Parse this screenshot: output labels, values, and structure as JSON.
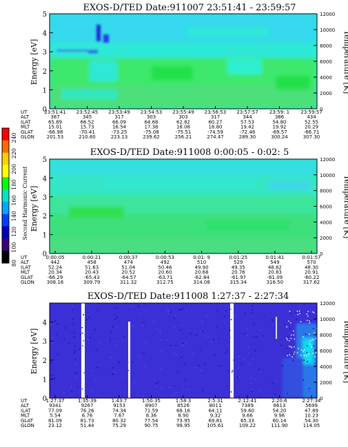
{
  "colors": {
    "background": "#ffffff",
    "cyan": "#2ff0d0",
    "aqua": "#33d6e8",
    "green": "#22e04a",
    "lightgreen": "#3ce86c",
    "blue_bg": "#3a2bd0",
    "deep_blue": "#1a18a8",
    "white_streak": "#ffffff"
  },
  "colorbar": {
    "label": "Second Harmonic Current",
    "ticks": [
      "240",
      "220",
      "200",
      "180",
      "160",
      "140",
      "120",
      "100",
      "80"
    ],
    "colors": [
      "#ff0000",
      "#ff6a00",
      "#ffd000",
      "#ffff00",
      "#00ff00",
      "#00e5c0",
      "#00a8ff",
      "#0040ff",
      "#0000c0",
      "#3b007a",
      "#000000"
    ]
  },
  "eph_labels": [
    "UT",
    "ALT",
    "ILAT",
    "MLT",
    "GLAT",
    "GLON"
  ],
  "chart_data": [
    {
      "type": "heatmap",
      "title": "EXOS-D/TED   Date:911007  23:51:41 - 23:59:57",
      "ylabel": "Energy [eV]",
      "ylabel_right": "Temperature [K]",
      "ylim": [
        0,
        5
      ],
      "ylim_right": [
        0,
        12000
      ],
      "yticks": [
        "0",
        "1",
        "2",
        "3",
        "4",
        "5"
      ],
      "yticks_right": [
        "0",
        "2000",
        "4000",
        "6000",
        "8000",
        "10000",
        "12000"
      ],
      "ephemeris": {
        "UT": [
          "23:51:41",
          "23:52:45",
          "23:53:49",
          "23:54:53",
          "23:55:49",
          "23:56:53",
          "23:57:57",
          "23:59: 1",
          "23:59:57"
        ],
        "ALT": [
          "387",
          "345",
          "317",
          "303",
          "303",
          "317",
          "344",
          "386",
          "434"
        ],
        "ILAT": [
          "65.89",
          "66.52",
          "66.09",
          "64.68",
          "62.82",
          "60.27",
          "57.53",
          "54.80",
          "52.55"
        ],
        "MLT": [
          "15.01",
          "15.73",
          "16.54",
          "17.38",
          "18.08",
          "18.80",
          "19.42",
          "19.92",
          "20.29"
        ],
        "GLAT": [
          "-66.98",
          "-70.41",
          "-73.25",
          "-75.08",
          "-75.51",
          "-74.59",
          "-72.46",
          "-69.57",
          "-66.71"
        ],
        "GLON": [
          "201.53",
          "210.60",
          "223.13",
          "239.62",
          "256.21",
          "274.47",
          "289.30",
          "300.24",
          "307.30"
        ]
      }
    },
    {
      "type": "heatmap",
      "title": "EXOS-D/TED   Date:911008  0:00:05 - 0:02: 5",
      "ylabel": "Energy [eV]",
      "ylabel_right": "Temperature [K]",
      "ylim": [
        0,
        5
      ],
      "ylim_right": [
        0,
        12000
      ],
      "yticks": [
        "0",
        "1",
        "2",
        "3",
        "4",
        "5"
      ],
      "yticks_right": [
        "0",
        "2000",
        "4000",
        "6000",
        "8000",
        "10000",
        "12000"
      ],
      "ephemeris": {
        "UT": [
          "0:00:05",
          "0:00:21",
          "0:00:37",
          "0:00:53",
          "0:01: 9",
          "0:01:25",
          "0:01:41",
          "0:01:57"
        ],
        "ALT": [
          "442",
          "458",
          "474",
          "492",
          "510",
          "529",
          "549",
          "570"
        ],
        "ILAT": [
          "52.24",
          "51.63",
          "51.04",
          "50.46",
          "49.90",
          "49.35",
          "48.82",
          "48.30"
        ],
        "MLT": [
          "20.34",
          "20.43",
          "20.52",
          "20.60",
          "20.68",
          "20.76",
          "20.83",
          "20.91"
        ],
        "GLAT": [
          "-66.29",
          "-65.43",
          "-64.57",
          "-63.71",
          "-62.84",
          "-61.97",
          "-61.09",
          "-60.22"
        ],
        "GLON": [
          "308.16",
          "309.79",
          "311.32",
          "312.75",
          "314.08",
          "315.34",
          "316.50",
          "317.62"
        ]
      }
    },
    {
      "type": "heatmap",
      "title": "EXOS-D/TED   Date:911008  1:27:37 - 2:27:34",
      "ylabel": "Energy [eV]",
      "ylabel_right": "Temperature [K]",
      "ylim": [
        0,
        5
      ],
      "ylim_right": [
        0,
        12000
      ],
      "yticks": [
        "0",
        "1",
        "2",
        "3",
        "4"
      ],
      "yticks_right": [
        "0",
        "2000",
        "4000",
        "6000",
        "8000",
        "10000",
        "12000"
      ],
      "ephemeris": {
        "UT": [
          "1:27:37",
          "1:35:39",
          "1:43:7",
          "1:50:35",
          "1:58:3",
          "2:5:31",
          "2:12:41",
          "2:20:6",
          "2:27:34"
        ],
        "ALT": [
          "9341",
          "9267",
          "9153",
          "8907",
          "8526",
          "8011",
          "7389",
          "6613",
          "5699"
        ],
        "ILAT": [
          "77.09",
          "76.26",
          "74.34",
          "71.59",
          "68.16",
          "64.11",
          "59.60",
          "54.20",
          "47.89"
        ],
        "MLT": [
          "5.54",
          "6.76",
          "7.67",
          "8.36",
          "8.90",
          "9.32",
          "9.66",
          "9.96",
          "10.23"
        ],
        "GLAT": [
          "81.09",
          "81.73",
          "80.32",
          "77.54",
          "73.95",
          "69.81",
          "65.33",
          "60.14",
          "54.30"
        ],
        "GLON": [
          "23.12",
          "51.44",
          "75.29",
          "90.75",
          "99.95",
          "105.61",
          "109.22",
          "111.90",
          "114.05"
        ]
      }
    }
  ]
}
